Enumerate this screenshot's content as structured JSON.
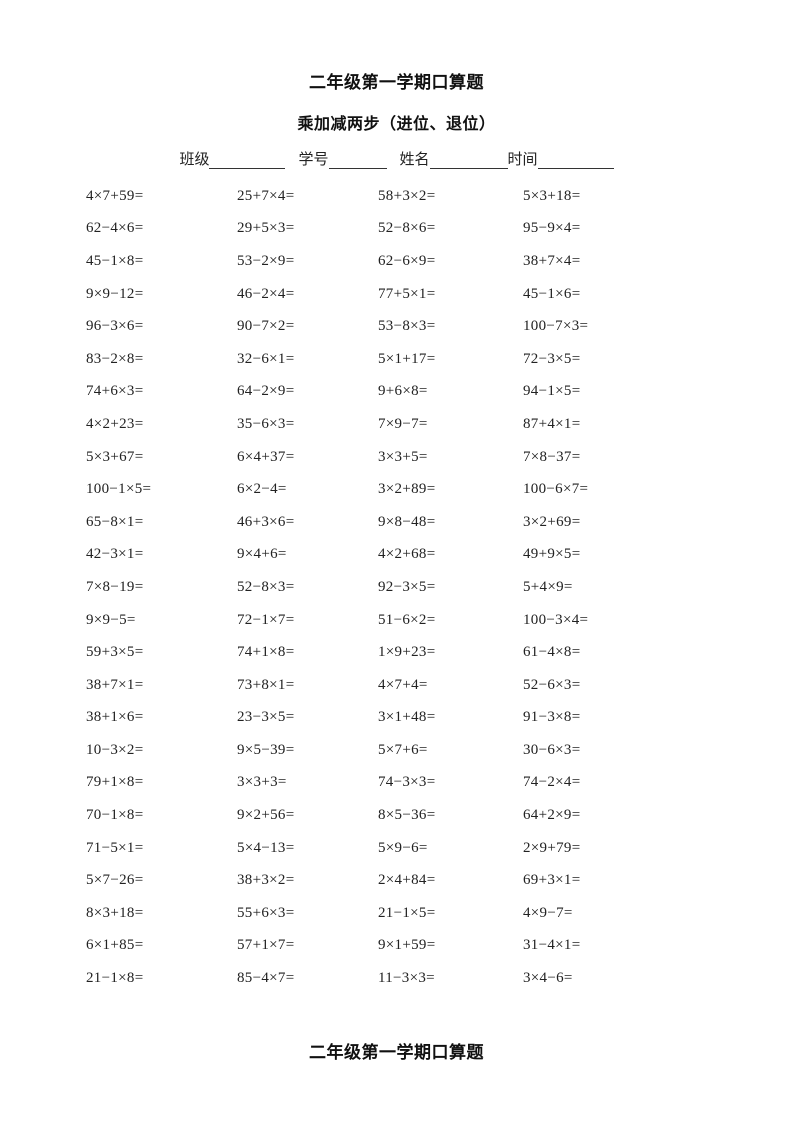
{
  "header": {
    "title": "二年级第一学期口算题",
    "subtitle": "乘加减两步（进位、退位）"
  },
  "form": {
    "fields": [
      {
        "label": "班级"
      },
      {
        "label": "学号"
      },
      {
        "label": "姓名"
      },
      {
        "label": "时间"
      }
    ]
  },
  "problems": [
    [
      "4×7+59=",
      "25+7×4=",
      "58+3×2=",
      "5×3+18="
    ],
    [
      "62−4×6=",
      "29+5×3=",
      "52−8×6=",
      "95−9×4="
    ],
    [
      "45−1×8=",
      "53−2×9=",
      "62−6×9=",
      "38+7×4="
    ],
    [
      "9×9−12=",
      "46−2×4=",
      "77+5×1=",
      "45−1×6="
    ],
    [
      "96−3×6=",
      "90−7×2=",
      "53−8×3=",
      "100−7×3="
    ],
    [
      "83−2×8=",
      "32−6×1=",
      "5×1+17=",
      "72−3×5="
    ],
    [
      "74+6×3=",
      "64−2×9=",
      "9+6×8=",
      "94−1×5="
    ],
    [
      "4×2+23=",
      "35−6×3=",
      "7×9−7=",
      "87+4×1="
    ],
    [
      "5×3+67=",
      "6×4+37=",
      "3×3+5=",
      "7×8−37="
    ],
    [
      "100−1×5=",
      "6×2−4=",
      "3×2+89=",
      "100−6×7="
    ],
    [
      "65−8×1=",
      "46+3×6=",
      "9×8−48=",
      "3×2+69="
    ],
    [
      "42−3×1=",
      "9×4+6=",
      "4×2+68=",
      "49+9×5="
    ],
    [
      "7×8−19=",
      "52−8×3=",
      "92−3×5=",
      "5+4×9="
    ],
    [
      "9×9−5=",
      "72−1×7=",
      "51−6×2=",
      "100−3×4="
    ],
    [
      "59+3×5=",
      "74+1×8=",
      "1×9+23=",
      "61−4×8="
    ],
    [
      "38+7×1=",
      "73+8×1=",
      "4×7+4=",
      "52−6×3="
    ],
    [
      "38+1×6=",
      "23−3×5=",
      "3×1+48=",
      "91−3×8="
    ],
    [
      "10−3×2=",
      "9×5−39=",
      "5×7+6=",
      "30−6×3="
    ],
    [
      "79+1×8=",
      "3×3+3=",
      "74−3×3=",
      "74−2×4="
    ],
    [
      "70−1×8=",
      "9×2+56=",
      "8×5−36=",
      "64+2×9="
    ],
    [
      "71−5×1=",
      "5×4−13=",
      "5×9−6=",
      "2×9+79="
    ],
    [
      "5×7−26=",
      "38+3×2=",
      "2×4+84=",
      "69+3×1="
    ],
    [
      "8×3+18=",
      "55+6×3=",
      "21−1×5=",
      "4×9−7="
    ],
    [
      "6×1+85=",
      "57+1×7=",
      "9×1+59=",
      "31−4×1="
    ],
    [
      "21−1×8=",
      "85−4×7=",
      "11−3×3=",
      "3×4−6="
    ]
  ],
  "footer": {
    "next_page_title": "二年级第一学期口算题"
  }
}
